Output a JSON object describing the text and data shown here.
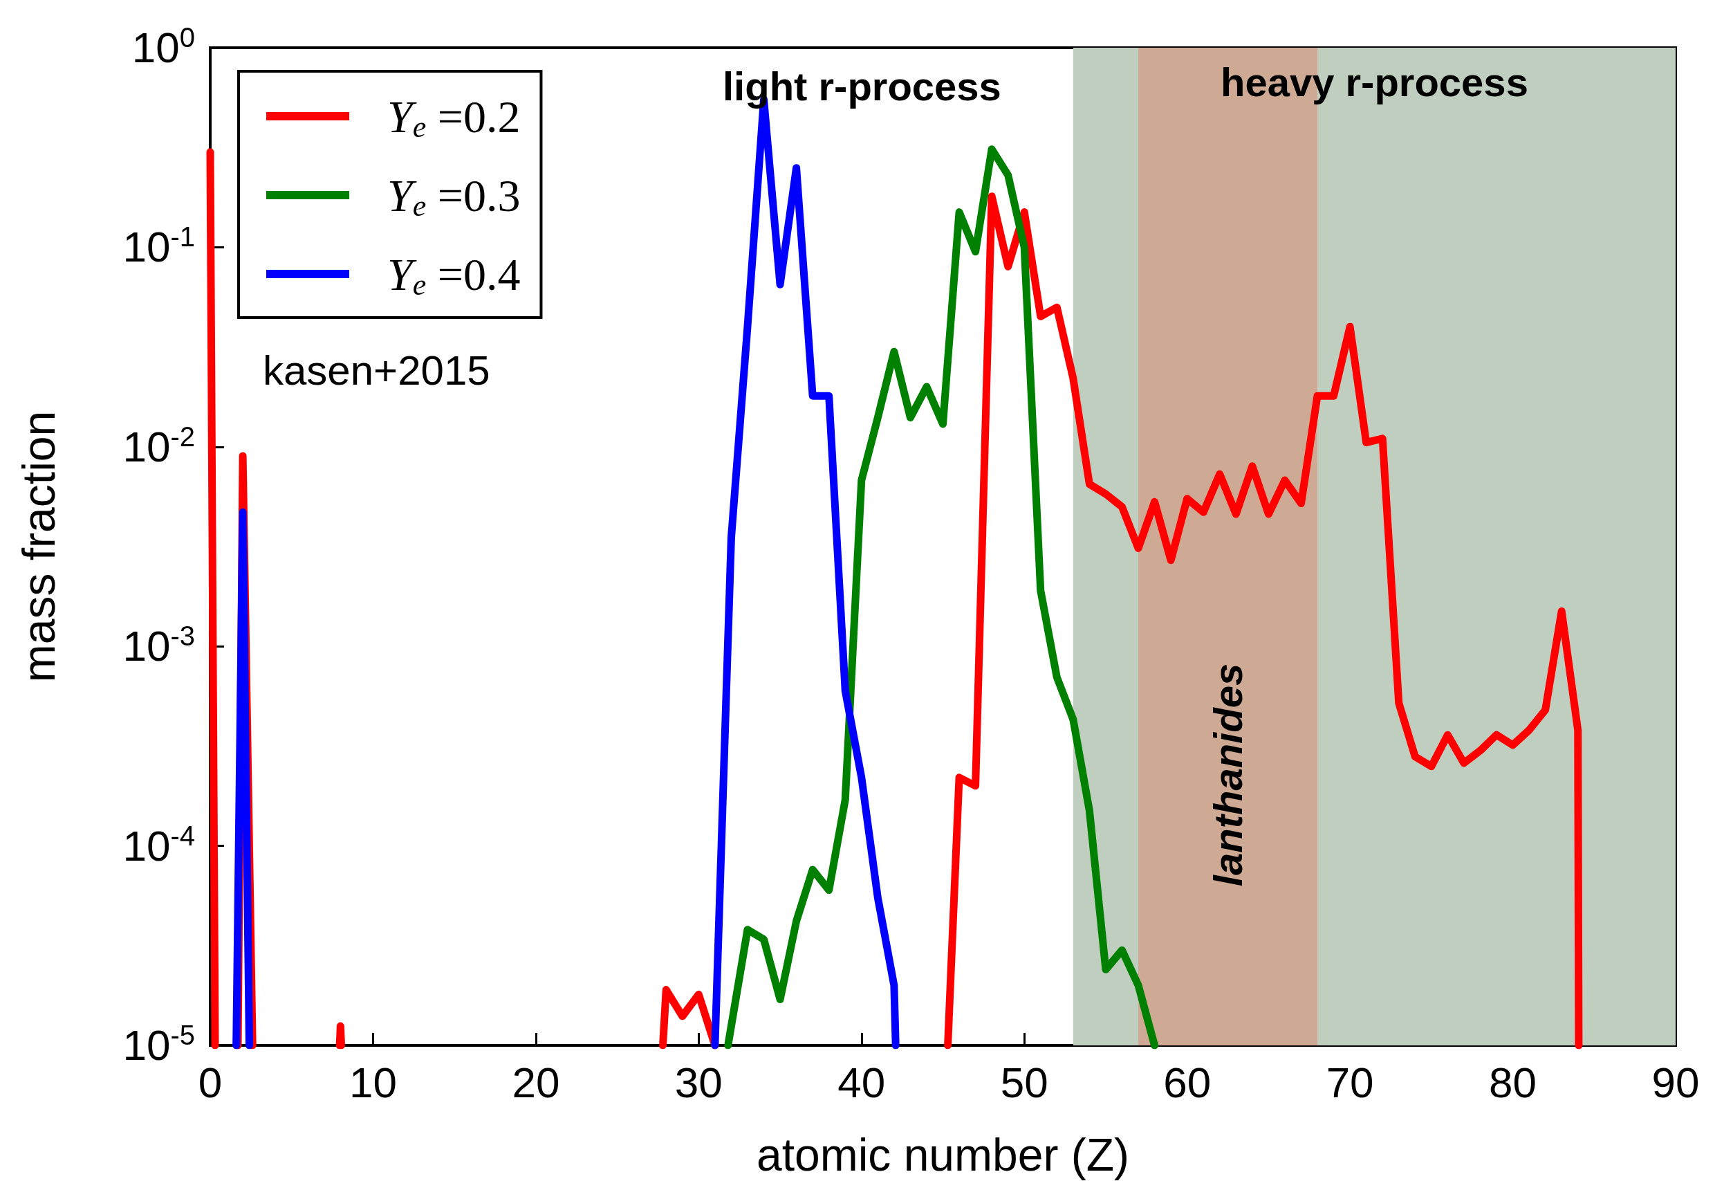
{
  "chart_data": {
    "type": "line",
    "xlabel": "atomic number (Z)",
    "ylabel": "mass fraction",
    "xlim": [
      0,
      90
    ],
    "xticks": [
      0,
      10,
      20,
      30,
      40,
      50,
      60,
      70,
      80,
      90
    ],
    "ylim": [
      1e-05,
      1
    ],
    "log": "y",
    "yticks": [
      {
        "value": 1e-05,
        "label": "10$^{-5}$"
      },
      {
        "value": 0.0001,
        "label": "10$^{-4}$"
      },
      {
        "value": 0.001,
        "label": "10$^{-3}$"
      },
      {
        "value": 0.01,
        "label": "10$^{-2}$"
      },
      {
        "value": 0.1,
        "label": "10$^{-1}$"
      },
      {
        "value": 1,
        "label": "10$^{0}$"
      }
    ],
    "grid": false,
    "legend": "top left",
    "line_style": "solid",
    "marker": "none",
    "series": [
      {
        "name": "Y$_{e}$ =0.2",
        "color": "#ff0000",
        "x": [
          0,
          0.3,
          null,
          1.7,
          2,
          2.6,
          null,
          7.95,
          8,
          8.05,
          null,
          27.8,
          28,
          29,
          30,
          31,
          null,
          45.3,
          46,
          47,
          48,
          49,
          50,
          51,
          52,
          53,
          54,
          55,
          56,
          57,
          58,
          59,
          60,
          61,
          62,
          63,
          64,
          65,
          66,
          67,
          68,
          69,
          70,
          71,
          72,
          73,
          74,
          75,
          76,
          77,
          78,
          79,
          80,
          81,
          82,
          83,
          84,
          84.05
        ],
        "values": [
          0.3,
          1e-05,
          null,
          1e-05,
          0.009,
          1e-05,
          null,
          1e-05,
          1.25e-05,
          1e-05,
          null,
          1e-05,
          1.9e-05,
          1.4e-05,
          1.8e-05,
          1e-05,
          null,
          1e-05,
          0.00022,
          0.0002,
          0.18,
          0.08,
          0.15,
          0.045,
          0.05,
          0.022,
          0.0065,
          0.0058,
          0.005,
          0.0031,
          0.0053,
          0.0027,
          0.0055,
          0.0047,
          0.0073,
          0.0046,
          0.008,
          0.0046,
          0.0068,
          0.0052,
          0.018,
          0.018,
          0.04,
          0.0105,
          0.011,
          0.00052,
          0.00028,
          0.00025,
          0.00036,
          0.00026,
          0.0003,
          0.00036,
          0.00032,
          0.00038,
          0.00048,
          0.0015,
          0.00038,
          1e-05
        ]
      },
      {
        "name": "Y$_{e}$ =0.3",
        "color": "#008000",
        "x": [
          31.8,
          33,
          34,
          35,
          36,
          37,
          38,
          39,
          40,
          41,
          42,
          43,
          44,
          45,
          46,
          47,
          48,
          49,
          50,
          51,
          52,
          53,
          54,
          55,
          56,
          57,
          58
        ],
        "values": [
          1e-05,
          3.8e-05,
          3.4e-05,
          1.7e-05,
          4.2e-05,
          7.6e-05,
          6e-05,
          0.00017,
          0.0068,
          0.014,
          0.03,
          0.014,
          0.02,
          0.013,
          0.15,
          0.095,
          0.31,
          0.23,
          0.1,
          0.0019,
          0.0007,
          0.00043,
          0.00015,
          2.4e-05,
          3e-05,
          2e-05,
          1e-05
        ]
      },
      {
        "name": "Y$_{e}$ =0.4",
        "color": "#0000ff",
        "x": [
          1.6,
          2,
          2.4,
          null,
          31,
          32,
          33,
          34,
          35,
          36,
          37,
          38,
          39,
          40,
          41,
          42,
          42.1
        ],
        "values": [
          1e-05,
          0.0047,
          1e-05,
          null,
          1e-05,
          0.0035,
          0.04,
          0.55,
          0.065,
          0.25,
          0.018,
          0.018,
          0.0006,
          0.00022,
          5.5e-05,
          2e-05,
          1e-05
        ]
      }
    ],
    "bands": [
      {
        "axis": "x",
        "from": 53,
        "to": 90,
        "label": "heavy r-process",
        "color": "#c0cec0"
      },
      {
        "axis": "x",
        "from": 57,
        "to": 68,
        "label": "lanthanides",
        "color": "#cea994"
      }
    ],
    "annotations": [
      "light r-process",
      "kasen+2015"
    ]
  }
}
